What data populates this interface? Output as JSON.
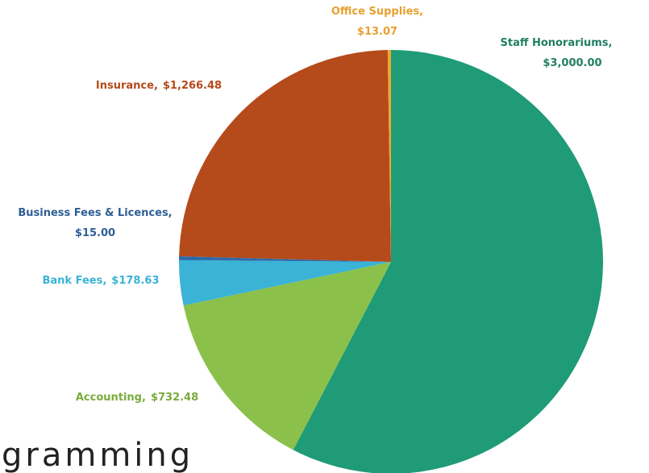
{
  "chart_data": {
    "type": "pie",
    "categories": [
      "Staff Honorariums,",
      "Accounting,",
      "Bank Fees,",
      "Business Fees & Licences,",
      "Insurance,",
      "Office Supplies,"
    ],
    "values": [
      3000.0,
      732.48,
      178.63,
      15.0,
      1266.48,
      13.07
    ],
    "value_labels": [
      "$3,000.00",
      "$732.48",
      "$178.63",
      "$15.00",
      "$1,266.48",
      "$13.07"
    ],
    "colors": [
      "#1f9b77",
      "#8bc14a",
      "#3ab3d6",
      "#2e6aa8",
      "#b54a1a",
      "#f0a830"
    ]
  },
  "background_text": "gramming"
}
